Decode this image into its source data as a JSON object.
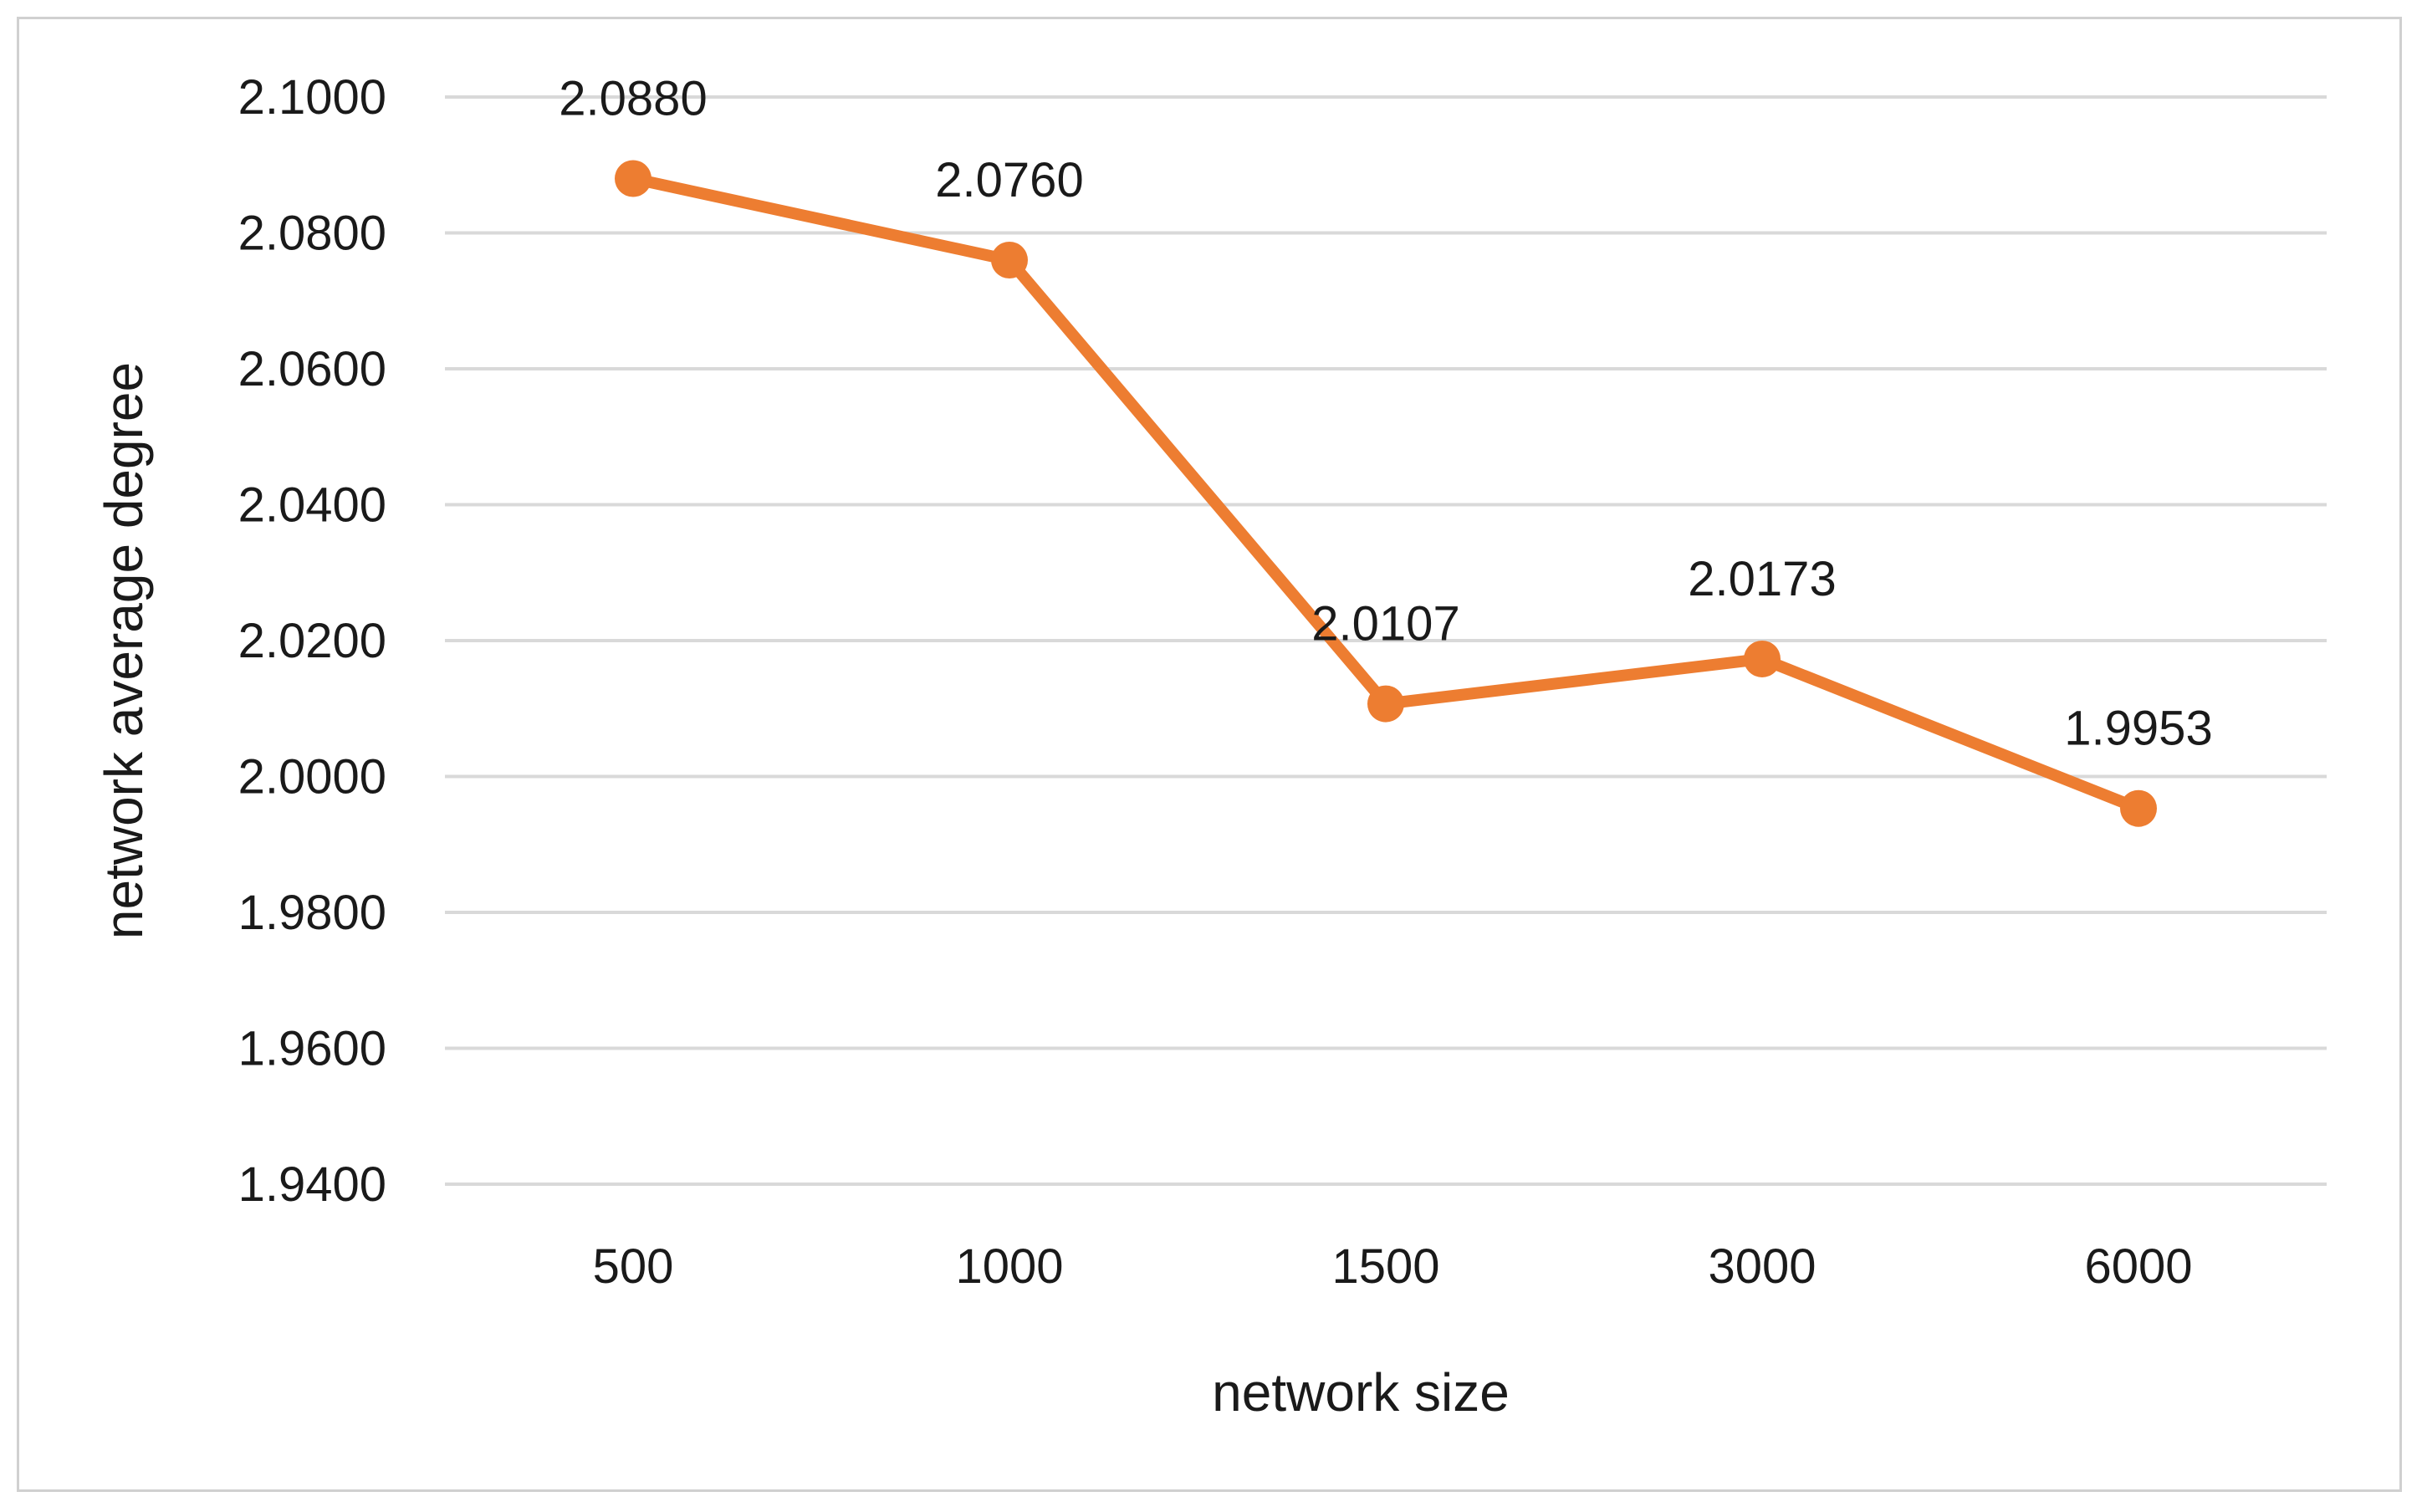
{
  "chart_data": {
    "type": "line",
    "categories": [
      "500",
      "1000",
      "1500",
      "3000",
      "6000"
    ],
    "series": [
      {
        "values": [
          2.088,
          2.076,
          2.0107,
          2.0173,
          1.9953
        ],
        "data_labels": [
          "2.0880",
          "2.0760",
          "2.0107",
          "2.0173",
          "1.9953"
        ],
        "color": "#ED7D31"
      }
    ],
    "xlabel": "network size",
    "ylabel": "network average degree",
    "ylim": [
      1.94,
      2.1
    ],
    "yticks": [
      "1.9400",
      "1.9600",
      "1.9800",
      "2.0000",
      "2.0200",
      "2.0400",
      "2.0600",
      "2.0800",
      "2.1000"
    ],
    "grid": true,
    "legend": "none",
    "gridline_color": "#D9D9D9"
  }
}
